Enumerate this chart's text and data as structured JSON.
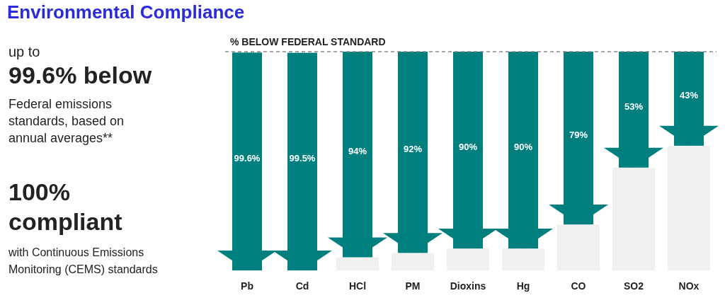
{
  "chart_data": {
    "type": "bar",
    "title": "Environmental Compliance",
    "categories": [
      "Pb",
      "Cd",
      "HCl",
      "PM",
      "Dioxins",
      "Hg",
      "CO",
      "SO2",
      "NOx"
    ],
    "stacked": true,
    "ylim": [
      0,
      100
    ],
    "tick_labels": "x",
    "grid": false,
    "series": [
      {
        "color": "#f0f0f0",
        "values": [
          null,
          null,
          6,
          8,
          10,
          10,
          21,
          47,
          57
        ]
      },
      {
        "color": "#007f7f",
        "values": [
          99.6,
          99.5,
          94,
          92,
          90,
          90,
          79,
          53,
          43
        ],
        "value_labels": [
          "99.6%",
          "99.5%",
          "94%",
          "92%",
          "90%",
          "90%",
          "79%",
          "53%",
          "43%"
        ]
      }
    ],
    "ref_lines": [
      {
        "axis": "y",
        "value": 100,
        "label": "% BELOW FEDERAL STANDARD",
        "color": "#888888",
        "line_style": "dashed"
      }
    ],
    "annotations": [
      "up to",
      "99.6% below",
      "Federal emissions standards, based on annual averages**",
      "100% compliant",
      "with Continuous Emissions Monitoring (CEMS) standards"
    ]
  }
}
